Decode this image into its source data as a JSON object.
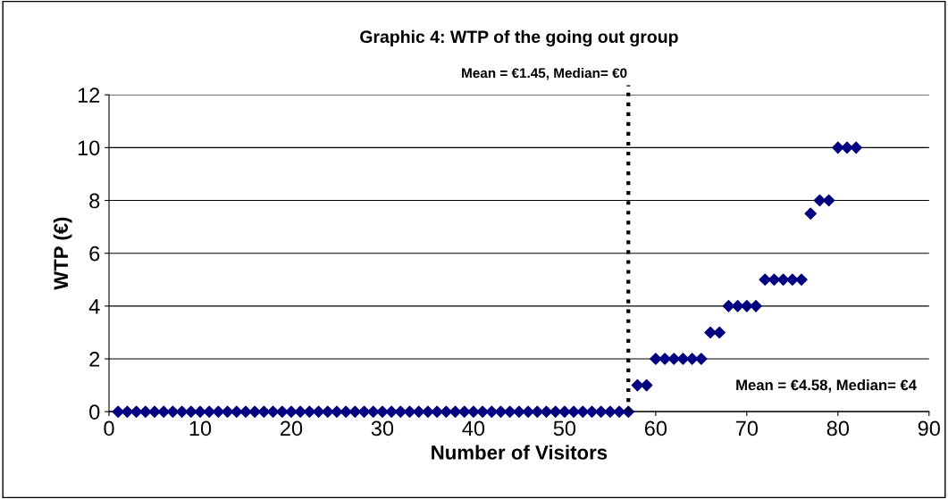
{
  "chart_data": {
    "type": "scatter",
    "title": "Graphic 4: WTP of the going out group",
    "xlabel": "Number of Visitors",
    "ylabel": "WTP (€)",
    "x": [
      1,
      2,
      3,
      4,
      5,
      6,
      7,
      8,
      9,
      10,
      11,
      12,
      13,
      14,
      15,
      16,
      17,
      18,
      19,
      20,
      21,
      22,
      23,
      24,
      25,
      26,
      27,
      28,
      29,
      30,
      31,
      32,
      33,
      34,
      35,
      36,
      37,
      38,
      39,
      40,
      41,
      42,
      43,
      44,
      45,
      46,
      47,
      48,
      49,
      50,
      51,
      52,
      53,
      54,
      55,
      56,
      57,
      58,
      59,
      60,
      61,
      62,
      63,
      64,
      65,
      66,
      67,
      68,
      69,
      70,
      71,
      72,
      73,
      74,
      75,
      76,
      77,
      78,
      79,
      80,
      81,
      82
    ],
    "series": [
      {
        "color": "#000080",
        "values": [
          0,
          0,
          0,
          0,
          0,
          0,
          0,
          0,
          0,
          0,
          0,
          0,
          0,
          0,
          0,
          0,
          0,
          0,
          0,
          0,
          0,
          0,
          0,
          0,
          0,
          0,
          0,
          0,
          0,
          0,
          0,
          0,
          0,
          0,
          0,
          0,
          0,
          0,
          0,
          0,
          0,
          0,
          0,
          0,
          0,
          0,
          0,
          0,
          0,
          0,
          0,
          0,
          0,
          0,
          0,
          0,
          0,
          1,
          1,
          2,
          2,
          2,
          2,
          2,
          2,
          3,
          3,
          4,
          4,
          4,
          4,
          5,
          5,
          5,
          5,
          5,
          7.5,
          8,
          8,
          10,
          10,
          10
        ]
      }
    ],
    "marker": "diamond",
    "xlim": [
      0,
      90
    ],
    "xticks": [
      0,
      10,
      20,
      30,
      40,
      50,
      60,
      70,
      80,
      90
    ],
    "ylim": [
      0,
      12
    ],
    "yticks": [
      0,
      2,
      4,
      6,
      8,
      10,
      12
    ],
    "grid": "y",
    "ref_lines": [
      {
        "axis": "x",
        "value": 57,
        "color": "#000000",
        "line_style": "dotted"
      }
    ],
    "annotations": [
      "Mean = €1.45, Median= €0",
      "Mean = €4.58, Median= €4"
    ]
  }
}
